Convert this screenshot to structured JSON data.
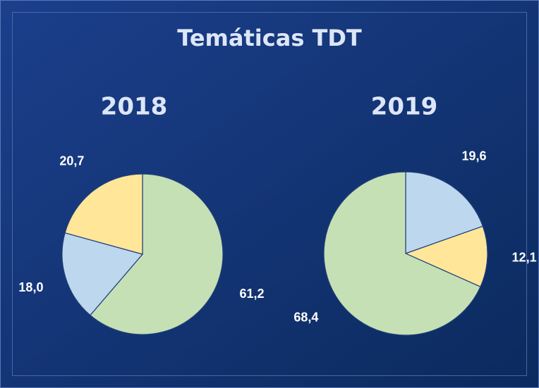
{
  "title": "Temáticas TDT",
  "chart_data": [
    {
      "type": "pie",
      "title": "2018",
      "values": [
        61.2,
        18.0,
        20.7
      ],
      "value_labels": [
        "61,2",
        "18,0",
        "20,7"
      ],
      "colors": [
        "#c5e0b4",
        "#bdd7ee",
        "#ffe699"
      ]
    },
    {
      "type": "pie",
      "title": "2019",
      "values": [
        19.6,
        12.1,
        68.4
      ],
      "value_labels": [
        "19,6",
        "12,1",
        "68,4"
      ],
      "colors": [
        "#bdd7ee",
        "#ffe699",
        "#c5e0b4"
      ]
    }
  ]
}
